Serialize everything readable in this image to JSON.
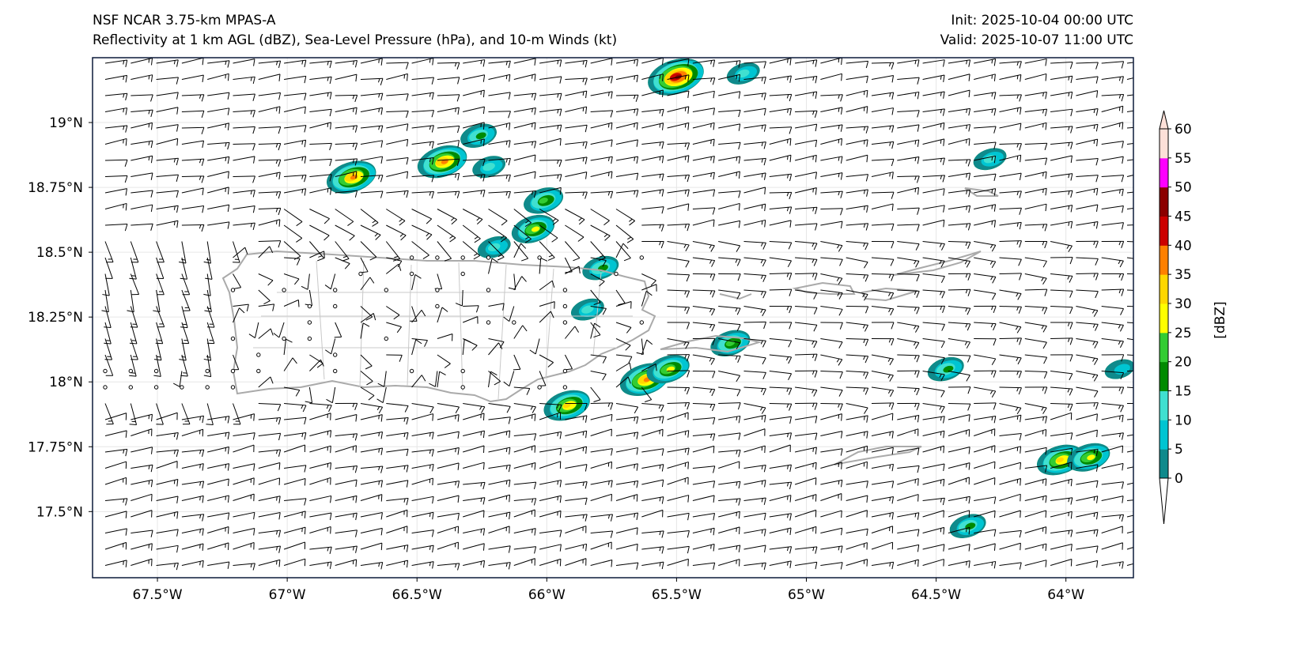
{
  "header": {
    "model": "NSF NCAR 3.75-km MPAS-A",
    "fields": "Reflectivity at 1 km AGL (dBZ), Sea-Level Pressure (hPa), and 10-m Winds (kt)",
    "init": "Init: 2025-10-04 00:00 UTC",
    "valid": "Valid: 2025-10-07 11:00 UTC"
  },
  "map": {
    "lon_range": [
      -67.75,
      -63.74
    ],
    "lat_range": [
      17.245,
      19.25
    ],
    "lon_ticks": [
      {
        "v": -67.5,
        "label": "67.5°W"
      },
      {
        "v": -67,
        "label": "67°W"
      },
      {
        "v": -66.5,
        "label": "66.5°W"
      },
      {
        "v": -66,
        "label": "66°W"
      },
      {
        "v": -65.5,
        "label": "65.5°W"
      },
      {
        "v": -65,
        "label": "65°W"
      },
      {
        "v": -64.5,
        "label": "64.5°W"
      },
      {
        "v": -64,
        "label": "64°W"
      }
    ],
    "lat_ticks": [
      {
        "v": 19,
        "label": "19°N"
      },
      {
        "v": 18.75,
        "label": "18.75°N"
      },
      {
        "v": 18.5,
        "label": "18.5°N"
      },
      {
        "v": 18.25,
        "label": "18.25°N"
      },
      {
        "v": 18,
        "label": "18°N"
      },
      {
        "v": 17.75,
        "label": "17.75°N"
      },
      {
        "v": 17.5,
        "label": "17.5°N"
      }
    ],
    "echoes": [
      {
        "lon": -65.5,
        "lat": 19.177,
        "peak": 45
      },
      {
        "lon": -65.24,
        "lat": 19.19,
        "peak": 10
      },
      {
        "lon": -66.4,
        "lat": 18.85,
        "peak": 35
      },
      {
        "lon": -66.26,
        "lat": 18.95,
        "peak": 15
      },
      {
        "lon": -66.22,
        "lat": 18.83,
        "peak": 10
      },
      {
        "lon": -66.75,
        "lat": 18.79,
        "peak": 35
      },
      {
        "lon": -66.01,
        "lat": 18.7,
        "peak": 20
      },
      {
        "lon": -66.05,
        "lat": 18.59,
        "peak": 25
      },
      {
        "lon": -66.2,
        "lat": 18.52,
        "peak": 10
      },
      {
        "lon": -65.79,
        "lat": 18.44,
        "peak": 15
      },
      {
        "lon": -65.84,
        "lat": 18.28,
        "peak": 10
      },
      {
        "lon": -65.29,
        "lat": 18.15,
        "peak": 20
      },
      {
        "lon": -65.62,
        "lat": 18.01,
        "peak": 35
      },
      {
        "lon": -65.53,
        "lat": 18.05,
        "peak": 25
      },
      {
        "lon": -65.92,
        "lat": 17.91,
        "peak": 30
      },
      {
        "lon": -64.46,
        "lat": 18.05,
        "peak": 15
      },
      {
        "lon": -64.29,
        "lat": 18.86,
        "peak": 10
      },
      {
        "lon": -64.02,
        "lat": 17.7,
        "peak": 30
      },
      {
        "lon": -63.91,
        "lat": 17.71,
        "peak": 25
      },
      {
        "lon": -64.375,
        "lat": 17.445,
        "peak": 15
      },
      {
        "lon": -63.79,
        "lat": 18.05,
        "peak": 5
      }
    ]
  },
  "colorbar": {
    "label": "[dBZ]",
    "levels": [
      0,
      5,
      10,
      15,
      20,
      25,
      30,
      35,
      40,
      45,
      50,
      55,
      60
    ],
    "tick_labels": [
      "0",
      "5",
      "10",
      "15",
      "20",
      "25",
      "30",
      "35",
      "40",
      "45",
      "50",
      "55",
      "60"
    ],
    "colors": [
      "#0f8a8c",
      "#00c5d2",
      "#40e0d0",
      "#008a00",
      "#33cc33",
      "#ffff00",
      "#ffd700",
      "#ff8000",
      "#cc0000",
      "#8b0000",
      "#ff00ff",
      "#fde0d8"
    ],
    "under_color": "#ffffff",
    "over_color": "#fde0d8"
  }
}
